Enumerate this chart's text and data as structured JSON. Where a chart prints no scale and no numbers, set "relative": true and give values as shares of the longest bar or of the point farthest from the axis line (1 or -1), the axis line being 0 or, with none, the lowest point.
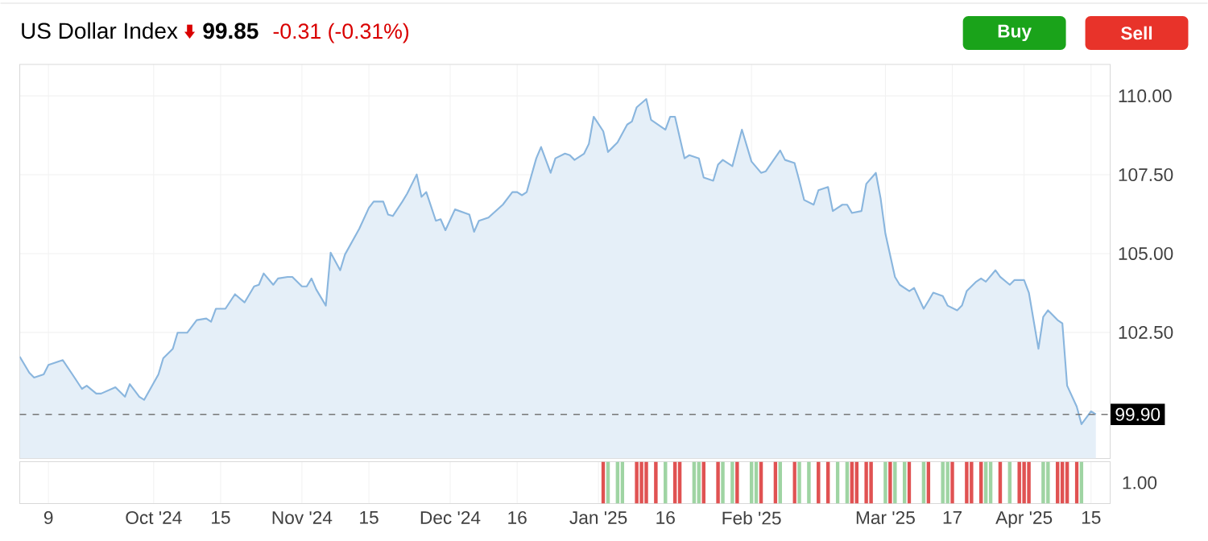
{
  "chart_data": [
    {
      "type": "area",
      "title": "US Dollar Index",
      "annotations": [
        "99.85",
        "-0.31 (-0.31%)",
        "Buy",
        "Sell"
      ],
      "color": "#8ab6de",
      "x": [
        "2024-09-03",
        "2024-09-05",
        "2024-09-06",
        "2024-09-08",
        "2024-09-09",
        "2024-09-12",
        "2024-09-14",
        "2024-09-16",
        "2024-09-17",
        "2024-09-19",
        "2024-09-20",
        "2024-09-23",
        "2024-09-25",
        "2024-09-26",
        "2024-09-28",
        "2024-09-29",
        "2024-10-02",
        "2024-10-03",
        "2024-10-05",
        "2024-10-06",
        "2024-10-08",
        "2024-10-10",
        "2024-10-12",
        "2024-10-13",
        "2024-10-14",
        "2024-10-16",
        "2024-10-18",
        "2024-10-20",
        "2024-10-22",
        "2024-10-23",
        "2024-10-24",
        "2024-10-26",
        "2024-10-27",
        "2024-10-29",
        "2024-10-30",
        "2024-11-01",
        "2024-11-02",
        "2024-11-03",
        "2024-11-04",
        "2024-11-06",
        "2024-11-07",
        "2024-11-09",
        "2024-11-10",
        "2024-11-13",
        "2024-11-15",
        "2024-11-16",
        "2024-11-18",
        "2024-11-19",
        "2024-11-20",
        "2024-11-22",
        "2024-11-23",
        "2024-11-25",
        "2024-11-26",
        "2024-11-27",
        "2024-11-29",
        "2024-11-30",
        "2024-12-01",
        "2024-12-03",
        "2024-12-06",
        "2024-12-07",
        "2024-12-08",
        "2024-12-10",
        "2024-12-13",
        "2024-12-15",
        "2024-12-16",
        "2024-12-17",
        "2024-12-18",
        "2024-12-20",
        "2024-12-21",
        "2024-12-23",
        "2024-12-24",
        "2024-12-26",
        "2024-12-27",
        "2024-12-28",
        "2024-12-30",
        "2024-12-31",
        "2025-01-01",
        "2025-01-03",
        "2025-01-04",
        "2025-01-06",
        "2025-01-08",
        "2025-01-09",
        "2025-01-10",
        "2025-01-12",
        "2025-01-13",
        "2025-01-16",
        "2025-01-17",
        "2025-01-18",
        "2025-01-20",
        "2025-01-21",
        "2025-01-23",
        "2025-01-24",
        "2025-01-26",
        "2025-01-27",
        "2025-01-28",
        "2025-01-30",
        "2025-02-01",
        "2025-02-03",
        "2025-02-05",
        "2025-02-06",
        "2025-02-09",
        "2025-02-10",
        "2025-02-12",
        "2025-02-13",
        "2025-02-14",
        "2025-02-16",
        "2025-02-17",
        "2025-02-19",
        "2025-02-20",
        "2025-02-22",
        "2025-02-23",
        "2025-02-24",
        "2025-02-26",
        "2025-02-27",
        "2025-03-01",
        "2025-03-02",
        "2025-03-03",
        "2025-03-05",
        "2025-03-06",
        "2025-03-08",
        "2025-03-09",
        "2025-03-11",
        "2025-03-12",
        "2025-03-13",
        "2025-03-15",
        "2025-03-16",
        "2025-03-18",
        "2025-03-19",
        "2025-03-20",
        "2025-03-22",
        "2025-03-23",
        "2025-03-24",
        "2025-03-26",
        "2025-03-27",
        "2025-03-29",
        "2025-03-30",
        "2025-04-01",
        "2025-04-02",
        "2025-04-04",
        "2025-04-05",
        "2025-04-06",
        "2025-04-08",
        "2025-04-09",
        "2025-04-10",
        "2025-04-12",
        "2025-04-13",
        "2025-04-15",
        "2025-04-16"
      ],
      "values": [
        101.73,
        101.22,
        101.07,
        101.17,
        101.47,
        101.62,
        101.17,
        100.71,
        100.81,
        100.56,
        100.56,
        100.76,
        100.46,
        100.86,
        100.46,
        100.36,
        101.17,
        101.68,
        101.98,
        102.49,
        102.49,
        102.89,
        102.94,
        102.84,
        103.25,
        103.25,
        103.71,
        103.45,
        103.96,
        104.01,
        104.37,
        104.01,
        104.21,
        104.26,
        104.26,
        103.96,
        103.96,
        104.21,
        103.86,
        103.35,
        105.03,
        104.47,
        104.97,
        105.79,
        106.45,
        106.65,
        106.65,
        106.24,
        106.19,
        106.65,
        106.9,
        107.51,
        106.8,
        106.95,
        106.04,
        106.09,
        105.74,
        106.4,
        106.24,
        105.69,
        106.04,
        106.14,
        106.55,
        106.95,
        106.95,
        106.85,
        106.95,
        108.02,
        108.38,
        107.56,
        108.02,
        108.17,
        108.12,
        107.97,
        108.17,
        108.48,
        109.34,
        108.88,
        108.22,
        108.53,
        109.09,
        109.19,
        109.64,
        109.9,
        109.24,
        108.93,
        109.34,
        109.34,
        108.02,
        108.12,
        108.02,
        107.41,
        107.31,
        107.82,
        107.97,
        107.77,
        108.93,
        107.92,
        107.56,
        107.61,
        108.27,
        107.97,
        107.87,
        107.31,
        106.7,
        106.55,
        107.01,
        107.11,
        106.35,
        106.55,
        106.55,
        106.29,
        106.35,
        107.21,
        107.56,
        106.75,
        105.63,
        104.26,
        104.01,
        103.81,
        103.91,
        103.25,
        103.5,
        103.76,
        103.65,
        103.35,
        103.2,
        103.35,
        103.81,
        104.11,
        104.21,
        104.11,
        104.47,
        104.26,
        104.01,
        104.16,
        104.16,
        103.76,
        101.98,
        102.99,
        103.2,
        102.89,
        102.79,
        100.81,
        100.15,
        99.59,
        100.0,
        99.9
      ],
      "xlim": [
        "2024-09-03",
        "2025-04-19"
      ],
      "ylim": [
        98.5,
        111
      ],
      "xticks": [
        {
          "value": "2024-09-09",
          "label": null
        },
        {
          "value": "2024-10-01",
          "label": null
        },
        {
          "value": "2024-10-15",
          "label": null
        },
        {
          "value": "2024-11-01",
          "label": null
        },
        {
          "value": "2024-11-15",
          "label": null
        },
        {
          "value": "2024-12-02",
          "label": null
        },
        {
          "value": "2024-12-16",
          "label": null
        },
        {
          "value": "2025-01-02",
          "label": null
        },
        {
          "value": "2025-01-16",
          "label": null
        },
        {
          "value": "2025-02-03",
          "label": null
        },
        {
          "value": "2025-03-03",
          "label": null
        },
        {
          "value": "2025-03-17",
          "label": null
        },
        {
          "value": "2025-04-01",
          "label": null
        },
        {
          "value": "2025-04-15",
          "label": null
        }
      ],
      "yticks": [
        {
          "value": 100,
          "label": null
        },
        {
          "value": 102.5,
          "label": "102.50"
        },
        {
          "value": 105,
          "label": "105.00"
        },
        {
          "value": 107.5,
          "label": "107.50"
        },
        {
          "value": 110,
          "label": "110.00"
        }
      ],
      "tick_labels": "y",
      "grid": true,
      "ref_lines": [
        {
          "axis": "y",
          "value": 99.9,
          "label": "99.90",
          "color": "#777777",
          "line_style": "dashed"
        }
      ]
    },
    {
      "type": "bar",
      "relative": true,
      "grid": "x",
      "annotations": [
        "1.00"
      ],
      "x": [
        "2025-01-03",
        "2025-01-04",
        "2025-01-06",
        "2025-01-07",
        "2025-01-10",
        "2025-01-11",
        "2025-01-12",
        "2025-01-14",
        "2025-01-16",
        "2025-01-18",
        "2025-01-19",
        "2025-01-22",
        "2025-01-23",
        "2025-01-24",
        "2025-01-27",
        "2025-01-28",
        "2025-01-30",
        "2025-01-31",
        "2025-02-03",
        "2025-02-04",
        "2025-02-05",
        "2025-02-08",
        "2025-02-09",
        "2025-02-12",
        "2025-02-13",
        "2025-02-15",
        "2025-02-17",
        "2025-02-19",
        "2025-02-21",
        "2025-02-23",
        "2025-02-24",
        "2025-02-25",
        "2025-02-27",
        "2025-02-28",
        "2025-03-03",
        "2025-03-04",
        "2025-03-05",
        "2025-03-07",
        "2025-03-08",
        "2025-03-11",
        "2025-03-12",
        "2025-03-15",
        "2025-03-16",
        "2025-03-17",
        "2025-03-20",
        "2025-03-21",
        "2025-03-23",
        "2025-03-24",
        "2025-03-25",
        "2025-03-27",
        "2025-03-29",
        "2025-03-31",
        "2025-04-01",
        "2025-04-02",
        "2025-04-05",
        "2025-04-06",
        "2025-04-08",
        "2025-04-09",
        "2025-04-10",
        "2025-04-12",
        "2025-04-13"
      ],
      "values": [
        1,
        1,
        1,
        1,
        1,
        1,
        1,
        1,
        1,
        1,
        1,
        1,
        1,
        1,
        1,
        1,
        1,
        1,
        1,
        1,
        1,
        1,
        1,
        1,
        1,
        1,
        1,
        1,
        1,
        1,
        1,
        1,
        1,
        1,
        1,
        1,
        1,
        1,
        1,
        1,
        1,
        1,
        1,
        1,
        1,
        1,
        1,
        1,
        1,
        1,
        1,
        1,
        1,
        1,
        1,
        1,
        1,
        1,
        1,
        1,
        1
      ],
      "colors": [
        "#e05252",
        "#9fd4a3",
        "#9fd4a3",
        "#9fd4a3",
        "#e05252",
        "#e05252",
        "#e05252",
        "#e05252",
        "#9fd4a3",
        "#e05252",
        "#e05252",
        "#9fd4a3",
        "#9fd4a3",
        "#e05252",
        "#e05252",
        "#9fd4a3",
        "#9fd4a3",
        "#e05252",
        "#9fd4a3",
        "#9fd4a3",
        "#e05252",
        "#e05252",
        "#9fd4a3",
        "#e05252",
        "#9fd4a3",
        "#9fd4a3",
        "#e05252",
        "#e05252",
        "#9fd4a3",
        "#9fd4a3",
        "#e05252",
        "#e05252",
        "#e05252",
        "#e05252",
        "#9fd4a3",
        "#e05252",
        "#9fd4a3",
        "#9fd4a3",
        "#e05252",
        "#9fd4a3",
        "#e05252",
        "#9fd4a3",
        "#9fd4a3",
        "#e05252",
        "#e05252",
        "#e05252",
        "#e05252",
        "#9fd4a3",
        "#9fd4a3",
        "#e05252",
        "#9fd4a3",
        "#e05252",
        "#e05252",
        "#e05252",
        "#9fd4a3",
        "#9fd4a3",
        "#e05252",
        "#e05252",
        "#e05252",
        "#e05252",
        "#9fd4a3"
      ],
      "xlim": [
        "2024-09-03",
        "2025-04-19"
      ],
      "xticks": [
        {
          "value": "2024-09-09",
          "label": "9"
        },
        {
          "value": "2024-10-01",
          "label": "Oct '24"
        },
        {
          "value": "2024-10-15",
          "label": "15"
        },
        {
          "value": "2024-11-01",
          "label": "Nov '24"
        },
        {
          "value": "2024-11-15",
          "label": "15"
        },
        {
          "value": "2024-12-02",
          "label": "Dec '24"
        },
        {
          "value": "2024-12-16",
          "label": "16"
        },
        {
          "value": "2025-01-02",
          "label": "Jan '25"
        },
        {
          "value": "2025-01-16",
          "label": "16"
        },
        {
          "value": "2025-02-03",
          "label": "Feb '25"
        },
        {
          "value": "2025-03-03",
          "label": "Mar '25"
        },
        {
          "value": "2025-03-17",
          "label": "17"
        },
        {
          "value": "2025-04-01",
          "label": "Apr '25"
        },
        {
          "value": "2025-04-15",
          "label": "15"
        }
      ],
      "tick_labels": "x"
    }
  ]
}
